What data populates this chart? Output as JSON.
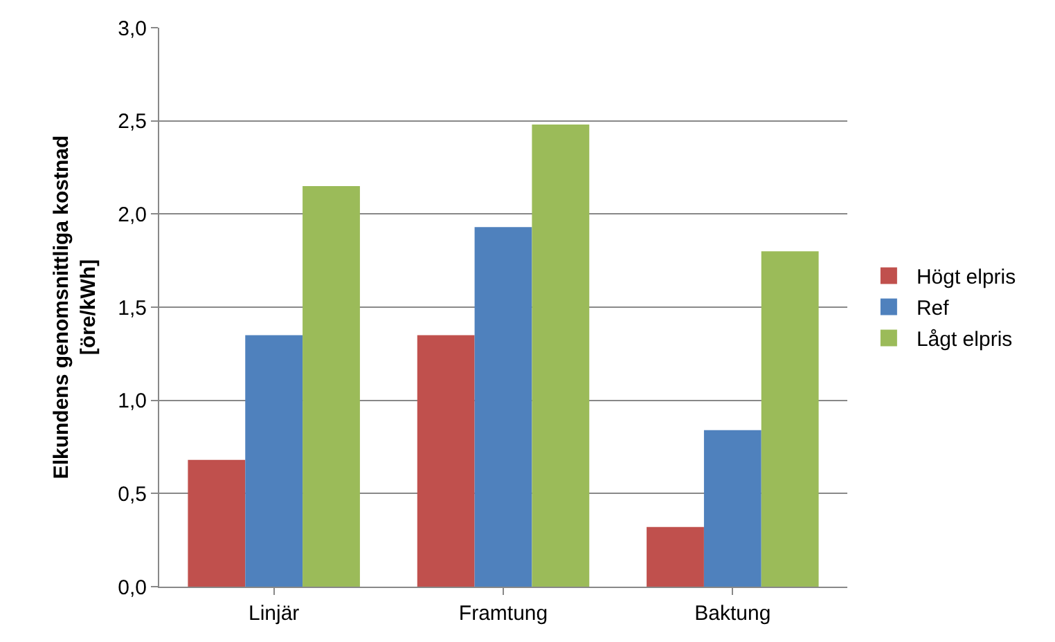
{
  "chart_data": {
    "type": "bar",
    "ylabel": "Elkundens genomsnittliga kostnad\n[öre/kWh]",
    "categories": [
      "Linjär",
      "Framtung",
      "Baktung"
    ],
    "series": [
      {
        "name": "Högt elpris",
        "color": "#c0504d",
        "values": [
          0.68,
          1.35,
          0.32
        ]
      },
      {
        "name": "Ref",
        "color": "#4f81bd",
        "values": [
          1.35,
          1.93,
          0.84
        ]
      },
      {
        "name": "Lågt elpris",
        "color": "#9bbb59",
        "values": [
          2.15,
          2.48,
          1.8
        ]
      }
    ],
    "ylim": [
      0,
      3
    ],
    "yticks": [
      {
        "value": 0,
        "label": "0,0"
      },
      {
        "value": 0.5,
        "label": "0,5"
      },
      {
        "value": 1,
        "label": "1,0"
      },
      {
        "value": 1.5,
        "label": "1,5"
      },
      {
        "value": 2,
        "label": "2,0"
      },
      {
        "value": 2.5,
        "label": "2,5"
      },
      {
        "value": 3,
        "label": "3,0"
      }
    ],
    "grid": "y",
    "legend": "right"
  }
}
